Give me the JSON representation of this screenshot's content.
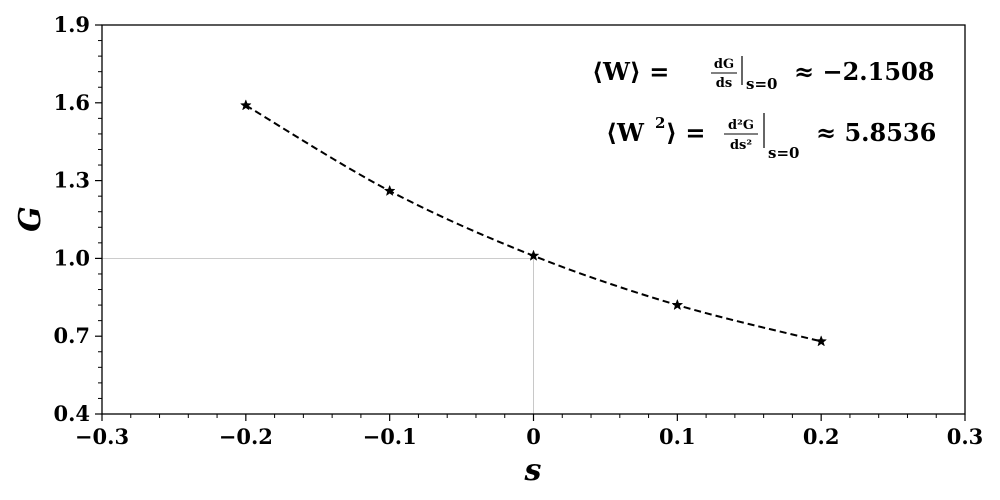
{
  "chart_data": {
    "type": "line",
    "xlabel": "s",
    "ylabel": "G",
    "xlim": [
      -0.3,
      0.3
    ],
    "ylim": [
      0.4,
      1.9
    ],
    "x_ticks": [
      -0.3,
      -0.2,
      -0.1,
      0,
      0.1,
      0.2,
      0.3
    ],
    "x_tick_labels": [
      "−0.3",
      "−0.2",
      "−0.1",
      "0",
      "0.1",
      "0.2",
      "0.3"
    ],
    "y_ticks": [
      0.4,
      0.7,
      1.0,
      1.3,
      1.6,
      1.9
    ],
    "y_tick_labels": [
      "0.4",
      "0.7",
      "1.0",
      "1.3",
      "1.6",
      "1.9"
    ],
    "grid": false,
    "series": [
      {
        "marker": "star",
        "line_style": "dashed",
        "color": "#000000",
        "points": [
          {
            "x": -0.2,
            "y": 1.59
          },
          {
            "x": -0.1,
            "y": 1.26
          },
          {
            "x": 0,
            "y": 1.01
          },
          {
            "x": 0.1,
            "y": 0.82
          },
          {
            "x": 0.2,
            "y": 0.68
          }
        ]
      }
    ],
    "reference_lines": {
      "x": 0,
      "y": 1.0,
      "color": "#bbbbbb"
    },
    "annotations": {
      "mean": {
        "lhs": "⟨W⟩ =",
        "num": "dG",
        "den": "ds",
        "sub": "s=0",
        "rhs": "≈ −2.1508"
      },
      "second_moment": {
        "lhs": "⟨W",
        "sup": "2",
        "lhs_close": "⟩ =",
        "num": "d²G",
        "den": "ds²",
        "sub": "s=0",
        "rhs": "≈ 5.8536"
      }
    }
  }
}
